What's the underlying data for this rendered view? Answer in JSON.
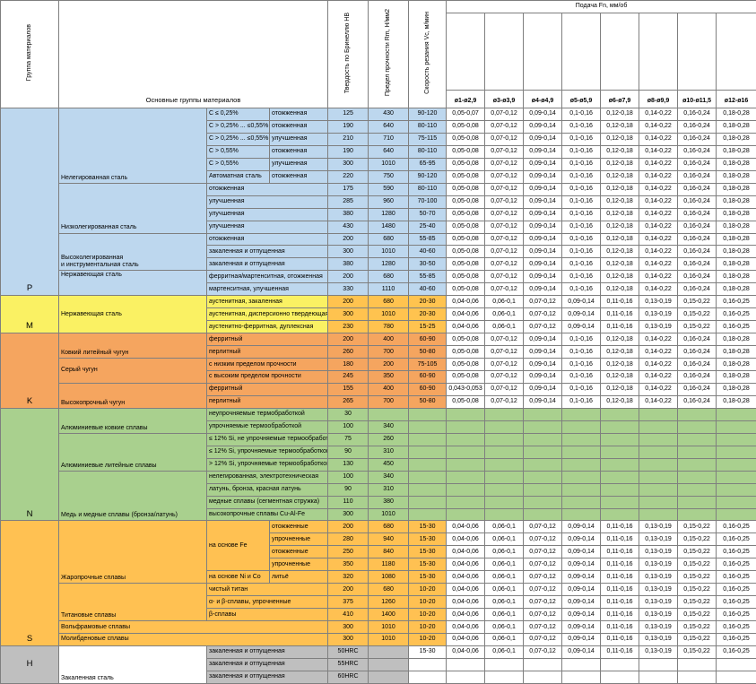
{
  "header": {
    "group_col": "Группа материалов",
    "main_col": "Основные группы материалов",
    "hb_col": "Твердость по Бринеллю HB",
    "rm_col": "Предел прочности Rm, Н/мм2",
    "vc_col": "Скорость резания Vc, м/мин",
    "feed_col": "Подача Fn, мм/об",
    "feed_sizes": [
      "ø1-ø2,9",
      "ø3-ø3,9",
      "ø4-ø4,9",
      "ø5-ø5,9",
      "ø6-ø7,9",
      "ø8-ø9,9",
      "ø10-ø11,5",
      "ø12-ø16"
    ]
  },
  "palette": {
    "P": "#BDD7EE",
    "M_name": "#FAF163",
    "M_num": "#FFC34F",
    "K": "#F5A55F",
    "N": "#A9D08E",
    "S": "#FFC152",
    "H": "#BFBFBF"
  },
  "feed_presets": {
    "P1": [
      "0,05-0,07",
      "0,07-0,12",
      "0,09-0,14",
      "0,1-0,16",
      "0,12-0,18",
      "0,14-0,22",
      "0,16-0,24",
      "0,18-0,28"
    ],
    "P": [
      "0,05-0,08",
      "0,07-0,12",
      "0,09-0,14",
      "0,1-0,16",
      "0,12-0,18",
      "0,14-0,22",
      "0,16-0,24",
      "0,18-0,28"
    ],
    "M": [
      "0,04-0,06",
      "0,06-0,1",
      "0,07-0,12",
      "0,09-0,14",
      "0,11-0,16",
      "0,13-0,19",
      "0,15-0,22",
      "0,16-0,25"
    ],
    "KF": [
      "0,043-0,053",
      "0,07-0,12",
      "0,09-0,14",
      "0,1-0,16",
      "0,12-0,18",
      "0,14-0,22",
      "0,16-0,24",
      "0,18-0,28"
    ],
    "E": [
      "",
      "",
      "",
      "",
      "",
      "",
      "",
      ""
    ]
  },
  "rows": [
    {
      "cells": [
        {
          "type": "letter",
          "t": "P",
          "rs": 15,
          "bg": "P",
          "va": "bottom"
        },
        {
          "type": "main",
          "t": "Нелегированная сталь",
          "rs": 6,
          "bg": "P",
          "va": "bottom"
        },
        {
          "type": "sub",
          "t": "C ≤ 0,25%",
          "bg": "P"
        },
        {
          "type": "state",
          "t": "отожженная",
          "bg": "P"
        }
      ],
      "hb": "125",
      "rm": "430",
      "vc": "90-120",
      "num_bg": "P",
      "feeds": "P1"
    },
    {
      "cells": [
        {
          "type": "sub",
          "t": "C > 0,25% ... ≤0,55%",
          "bg": "P"
        },
        {
          "type": "state",
          "t": "отожженная",
          "bg": "P"
        }
      ],
      "hb": "190",
      "rm": "640",
      "vc": "80-110",
      "num_bg": "P",
      "feeds": "P"
    },
    {
      "cells": [
        {
          "type": "sub",
          "t": "C > 0,25% ... ≤0,55%",
          "bg": "P"
        },
        {
          "type": "state",
          "t": "улучшенная",
          "bg": "P"
        }
      ],
      "hb": "210",
      "rm": "710",
      "vc": "75-115",
      "num_bg": "P",
      "feeds": "P"
    },
    {
      "cells": [
        {
          "type": "sub",
          "t": "C > 0,55%",
          "bg": "P"
        },
        {
          "type": "state",
          "t": "отожженная",
          "bg": "P"
        }
      ],
      "hb": "190",
      "rm": "640",
      "vc": "80-110",
      "num_bg": "P",
      "feeds": "P"
    },
    {
      "cells": [
        {
          "type": "sub",
          "t": "C > 0,55%",
          "bg": "P"
        },
        {
          "type": "state",
          "t": "улучшенная",
          "bg": "P"
        }
      ],
      "hb": "300",
      "rm": "1010",
      "vc": "65-95",
      "num_bg": "P",
      "feeds": "P"
    },
    {
      "cells": [
        {
          "type": "sub",
          "t": "Автоматная сталь",
          "bg": "P"
        },
        {
          "type": "state",
          "t": "отожженная",
          "bg": "P"
        }
      ],
      "hb": "220",
      "rm": "750",
      "vc": "90-120",
      "num_bg": "P",
      "feeds": "P"
    },
    {
      "cells": [
        {
          "type": "main",
          "t": "Низколегированная сталь",
          "rs": 4,
          "bg": "P",
          "va": "bottom"
        },
        {
          "type": "substate",
          "cs": 2,
          "t": "отожженная",
          "bg": "P"
        }
      ],
      "hb": "175",
      "rm": "590",
      "vc": "80-110",
      "num_bg": "P",
      "feeds": "P"
    },
    {
      "cells": [
        {
          "type": "substate",
          "cs": 2,
          "t": "улучшенная",
          "bg": "P"
        }
      ],
      "hb": "285",
      "rm": "960",
      "vc": "70-100",
      "num_bg": "P",
      "feeds": "P"
    },
    {
      "cells": [
        {
          "type": "substate",
          "cs": 2,
          "t": "улучшенная",
          "bg": "P"
        }
      ],
      "hb": "380",
      "rm": "1280",
      "vc": "50-70",
      "num_bg": "P",
      "feeds": "P"
    },
    {
      "cells": [
        {
          "type": "substate",
          "cs": 2,
          "t": "улучшенная",
          "bg": "P"
        }
      ],
      "hb": "430",
      "rm": "1480",
      "vc": "25-40",
      "num_bg": "P",
      "feeds": "P"
    },
    {
      "cells": [
        {
          "type": "main",
          "t": "Высоколегированная\nи инструментальная сталь",
          "rs": 3,
          "bg": "P",
          "va": "bottom"
        },
        {
          "type": "substate",
          "cs": 2,
          "t": "отожженная",
          "bg": "P"
        }
      ],
      "hb": "200",
      "rm": "680",
      "vc": "55-85",
      "num_bg": "P",
      "feeds": "P"
    },
    {
      "cells": [
        {
          "type": "substate",
          "cs": 2,
          "t": "закаленная и отпущенная",
          "bg": "P"
        }
      ],
      "hb": "300",
      "rm": "1010",
      "vc": "40-60",
      "num_bg": "P",
      "feeds": "P"
    },
    {
      "cells": [
        {
          "type": "substate",
          "cs": 2,
          "t": "закаленная и отпущенная",
          "bg": "P"
        }
      ],
      "hb": "380",
      "rm": "1280",
      "vc": "30-50",
      "num_bg": "P",
      "feeds": "P"
    },
    {
      "cells": [
        {
          "type": "main",
          "t": "Нержавеющая сталь",
          "rs": 2,
          "bg": "P",
          "va": "top"
        },
        {
          "type": "substate",
          "cs": 2,
          "t": "ферритная/мартенситная, отожженная",
          "bg": "P"
        }
      ],
      "hb": "200",
      "rm": "680",
      "vc": "55-85",
      "num_bg": "P",
      "feeds": "P"
    },
    {
      "cells": [
        {
          "type": "substate",
          "cs": 2,
          "t": "мартенситная, улучшенная",
          "bg": "P"
        }
      ],
      "hb": "330",
      "rm": "1110",
      "vc": "40-60",
      "num_bg": "P",
      "feeds": "P"
    },
    {
      "cells": [
        {
          "type": "letter",
          "t": "M",
          "rs": 3,
          "bg": "M_name",
          "va": "bottom"
        },
        {
          "type": "main",
          "t": "Нержавеющая сталь",
          "rs": 3,
          "bg": "M_name"
        },
        {
          "type": "substate",
          "cs": 2,
          "t": "аустенитная, закаленная",
          "bg": "M_name"
        }
      ],
      "hb": "200",
      "rm": "680",
      "vc": "20-30",
      "num_bg": "M_num",
      "feeds": "M"
    },
    {
      "cells": [
        {
          "type": "substate",
          "cs": 2,
          "t": "аустенитная, дисперсионно твердеющая",
          "bg": "M_name"
        }
      ],
      "hb": "300",
      "rm": "1010",
      "vc": "20-30",
      "num_bg": "M_num",
      "feeds": "M"
    },
    {
      "cells": [
        {
          "type": "substate",
          "cs": 2,
          "t": "аустенитно-ферритная, дуплексная",
          "bg": "M_name"
        }
      ],
      "hb": "230",
      "rm": "780",
      "vc": "15-25",
      "num_bg": "M_num",
      "feeds": "M"
    },
    {
      "cells": [
        {
          "type": "letter",
          "t": "K",
          "rs": 6,
          "bg": "K",
          "va": "bottom"
        },
        {
          "type": "main",
          "t": "Ковкий литейный чугун",
          "rs": 2,
          "bg": "K",
          "va": "bottom"
        },
        {
          "type": "substate",
          "cs": 2,
          "t": "ферритный",
          "bg": "K"
        }
      ],
      "hb": "200",
      "rm": "400",
      "vc": "60-90",
      "num_bg": "K",
      "feeds": "P"
    },
    {
      "cells": [
        {
          "type": "substate",
          "cs": 2,
          "t": "перлитный",
          "bg": "K"
        }
      ],
      "hb": "260",
      "rm": "700",
      "vc": "50-80",
      "num_bg": "K",
      "feeds": "P"
    },
    {
      "cells": [
        {
          "type": "main",
          "t": "Серый чугун",
          "rs": 2,
          "bg": "K"
        },
        {
          "type": "substate",
          "cs": 2,
          "t": "с низким пределом прочности",
          "bg": "K"
        }
      ],
      "hb": "180",
      "rm": "200",
      "vc": "75-105",
      "num_bg": "K",
      "feeds": "P"
    },
    {
      "cells": [
        {
          "type": "substate",
          "cs": 2,
          "t": "с высоким пределом прочности",
          "bg": "K"
        }
      ],
      "hb": "245",
      "rm": "350",
      "vc": "60-90",
      "num_bg": "K",
      "feeds": "P"
    },
    {
      "cells": [
        {
          "type": "main",
          "t": "Высокопрочный чугун",
          "rs": 2,
          "bg": "K",
          "va": "bottom"
        },
        {
          "type": "substate",
          "cs": 2,
          "t": "ферритный",
          "bg": "K"
        }
      ],
      "hb": "155",
      "rm": "400",
      "vc": "60-90",
      "num_bg": "K",
      "feeds": "KF"
    },
    {
      "cells": [
        {
          "type": "substate",
          "cs": 2,
          "t": "перлитный",
          "bg": "K"
        }
      ],
      "hb": "265",
      "rm": "700",
      "vc": "50-80",
      "num_bg": "K",
      "feeds": "P"
    },
    {
      "cells": [
        {
          "type": "letter",
          "t": "N",
          "rs": 9,
          "bg": "N",
          "va": "bottom"
        },
        {
          "type": "main",
          "t": "Алюминиевые ковкие сплавы",
          "rs": 2,
          "bg": "N",
          "va": "bottom"
        },
        {
          "type": "substate",
          "cs": 2,
          "t": "неупрочняемые термобработкой",
          "bg": "N"
        }
      ],
      "hb": "30",
      "rm": "",
      "vc": "",
      "num_bg": "N",
      "feeds": "E",
      "feeds_bg": "N"
    },
    {
      "cells": [
        {
          "type": "substate",
          "cs": 2,
          "t": "упрочняемые термообработкой",
          "bg": "N"
        }
      ],
      "hb": "100",
      "rm": "340",
      "vc": "",
      "num_bg": "N",
      "feeds": "E",
      "feeds_bg": "N"
    },
    {
      "cells": [
        {
          "type": "main",
          "t": "Алюминиевые литейные сплавы",
          "rs": 3,
          "bg": "N",
          "va": "bottom"
        },
        {
          "type": "substate",
          "cs": 2,
          "t": "≤ 12% Si, не упрочняемые термообработкой",
          "bg": "N"
        }
      ],
      "hb": "75",
      "rm": "260",
      "vc": "",
      "num_bg": "N",
      "feeds": "E",
      "feeds_bg": "N"
    },
    {
      "cells": [
        {
          "type": "substate",
          "cs": 2,
          "t": "≤ 12% Si, упрочняемые термообработкой",
          "bg": "N"
        }
      ],
      "hb": "90",
      "rm": "310",
      "vc": "",
      "num_bg": "N",
      "feeds": "E",
      "feeds_bg": "N"
    },
    {
      "cells": [
        {
          "type": "substate",
          "cs": 2,
          "t": "> 12% Si, упрочняемые термообработкой",
          "bg": "N"
        }
      ],
      "hb": "130",
      "rm": "450",
      "vc": "",
      "num_bg": "N",
      "feeds": "E",
      "feeds_bg": "N"
    },
    {
      "cells": [
        {
          "type": "main",
          "t": "Медь и медные сплавы (бронза/латунь)",
          "rs": 4,
          "bg": "N",
          "va": "bottom"
        },
        {
          "type": "substate",
          "cs": 2,
          "t": "нелегированная, электротехническая",
          "bg": "N"
        }
      ],
      "hb": "100",
      "rm": "340",
      "vc": "",
      "num_bg": "N",
      "feeds": "E",
      "feeds_bg": "N"
    },
    {
      "cells": [
        {
          "type": "substate",
          "cs": 2,
          "t": "латунь, бронза, красная латунь",
          "bg": "N"
        }
      ],
      "hb": "90",
      "rm": "310",
      "vc": "",
      "num_bg": "N",
      "feeds": "E",
      "feeds_bg": "N"
    },
    {
      "cells": [
        {
          "type": "substate",
          "cs": 2,
          "t": "медные сплавы (сегментная стружка)",
          "bg": "N"
        }
      ],
      "hb": "110",
      "rm": "380",
      "vc": "",
      "num_bg": "N",
      "feeds": "E",
      "feeds_bg": "N"
    },
    {
      "cells": [
        {
          "type": "substate",
          "cs": 2,
          "t": "высокопрочные сплавы Cu-Al-Fe",
          "bg": "N"
        }
      ],
      "hb": "300",
      "rm": "1010",
      "vc": "",
      "num_bg": "N",
      "feeds": "E",
      "feeds_bg": "N"
    },
    {
      "cells": [
        {
          "type": "letter",
          "t": "S",
          "rs": 10,
          "bg": "S",
          "va": "bottom"
        },
        {
          "type": "main",
          "t": "Жаропрочные сплавы",
          "rs": 5,
          "bg": "S",
          "va": "bottom"
        },
        {
          "type": "sub",
          "t": "на основе Fe",
          "rs": 4,
          "bg": "S"
        },
        {
          "type": "state",
          "t": "отожженные",
          "bg": "S"
        }
      ],
      "hb": "200",
      "rm": "680",
      "vc": "15-30",
      "num_bg": "S",
      "feeds": "M"
    },
    {
      "cells": [
        {
          "type": "state",
          "t": "упрочненные",
          "bg": "S"
        }
      ],
      "hb": "280",
      "rm": "940",
      "vc": "15-30",
      "num_bg": "S",
      "feeds": "M"
    },
    {
      "cells": [
        {
          "type": "state",
          "t": "отожженные",
          "bg": "S"
        }
      ],
      "hb": "250",
      "rm": "840",
      "vc": "15-30",
      "num_bg": "S",
      "feeds": "M"
    },
    {
      "cells": [
        {
          "type": "state",
          "t": "упрочненные",
          "bg": "S"
        }
      ],
      "hb": "350",
      "rm": "1180",
      "vc": "15-30",
      "num_bg": "S",
      "feeds": "M"
    },
    {
      "cells": [
        {
          "type": "sub",
          "t": "на основе Ni и Co",
          "bg": "S"
        },
        {
          "type": "state",
          "t": "литьё",
          "bg": "S"
        }
      ],
      "hb": "320",
      "rm": "1080",
      "vc": "15-30",
      "num_bg": "S",
      "feeds": "M"
    },
    {
      "cells": [
        {
          "type": "main",
          "t": "Титановые сплавы",
          "rs": 3,
          "bg": "S",
          "va": "bottom"
        },
        {
          "type": "substate",
          "cs": 2,
          "t": "чистый титан",
          "bg": "S"
        }
      ],
      "hb": "200",
      "rm": "680",
      "vc": "10-20",
      "num_bg": "S",
      "feeds": "M"
    },
    {
      "cells": [
        {
          "type": "substate",
          "cs": 2,
          "t": "α- и β-сплавы, упрочненные",
          "bg": "S"
        }
      ],
      "hb": "375",
      "rm": "1260",
      "vc": "10-20",
      "num_bg": "S",
      "feeds": "M"
    },
    {
      "cells": [
        {
          "type": "substate",
          "cs": 2,
          "t": "β-сплавы",
          "bg": "S"
        }
      ],
      "hb": "410",
      "rm": "1400",
      "vc": "10-20",
      "num_bg": "S",
      "feeds": "M"
    },
    {
      "cells": [
        {
          "type": "main",
          "cs": 3,
          "t": "Вольфрамовые сплавы",
          "bg": "S"
        }
      ],
      "hb": "300",
      "rm": "1010",
      "vc": "10-20",
      "num_bg": "S",
      "feeds": "M"
    },
    {
      "cells": [
        {
          "type": "main",
          "cs": 3,
          "t": "Молибденовые сплавы",
          "bg": "S"
        }
      ],
      "hb": "300",
      "rm": "1010",
      "vc": "10-20",
      "num_bg": "S",
      "feeds": "M"
    },
    {
      "cells": [
        {
          "type": "letter",
          "t": "H",
          "rs": 3,
          "bg": "H"
        },
        {
          "type": "main",
          "t": "Закаленная сталь",
          "rs": 3,
          "va": "bottom"
        },
        {
          "type": "substate",
          "cs": 2,
          "t": "закаленная и отпущенная",
          "bg": "H"
        }
      ],
      "hb": {
        "t": "50HRC",
        "bg": "H"
      },
      "rm": {
        "t": "",
        "bg": "H"
      },
      "vc": "15-30",
      "feeds": "M"
    },
    {
      "cells": [
        {
          "type": "substate",
          "cs": 2,
          "t": "закаленная и отпущенная",
          "bg": "H"
        }
      ],
      "hb": {
        "t": "55HRC",
        "bg": "H"
      },
      "rm": {
        "t": "",
        "bg": "H"
      },
      "vc": "",
      "feeds": "E"
    },
    {
      "cells": [
        {
          "type": "substate",
          "cs": 2,
          "t": "закаленная и отпущенная",
          "bg": "H"
        }
      ],
      "hb": {
        "t": "60HRC",
        "bg": "H"
      },
      "rm": {
        "t": "",
        "bg": "H"
      },
      "vc": "",
      "feeds": "E"
    }
  ]
}
